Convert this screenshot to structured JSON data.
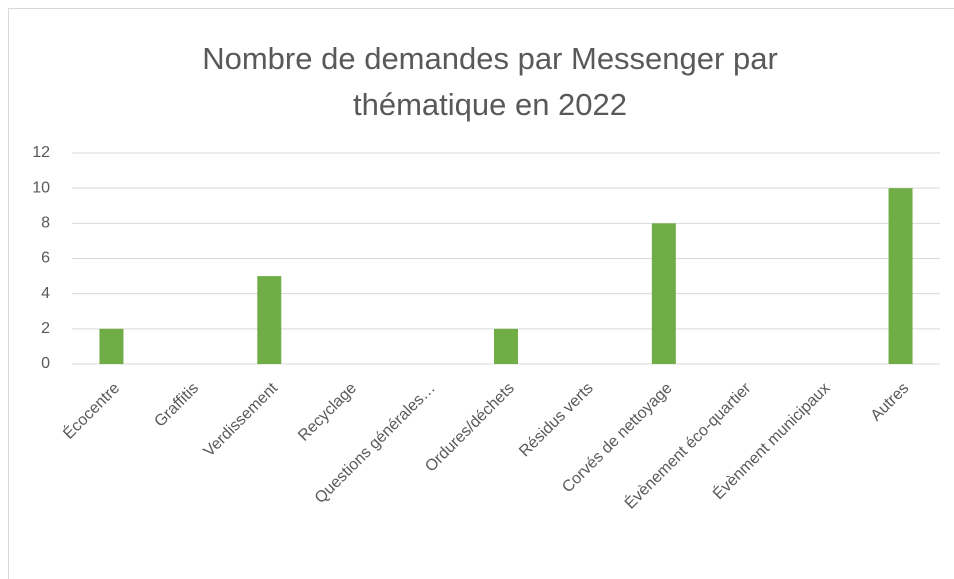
{
  "chart_data": {
    "type": "bar",
    "title": "Nombre de demandes par Messenger par thématique en 2022",
    "categories": [
      "Écocentre",
      "Graffitis",
      "Verdissement",
      "Recyclage",
      "Questions générales…",
      "Ordures/déchets",
      "Résidus verts",
      "Corvés de nettoyage",
      "Évènement éco-quartier",
      "Évènment municipaux",
      "Autres"
    ],
    "values": [
      2,
      0,
      5,
      0,
      0,
      2,
      0,
      8,
      0,
      0,
      10
    ],
    "color": "#70ad47",
    "ylim": [
      0,
      12
    ],
    "yticks": [
      0,
      2,
      4,
      6,
      8,
      10,
      12
    ],
    "grid": true
  }
}
